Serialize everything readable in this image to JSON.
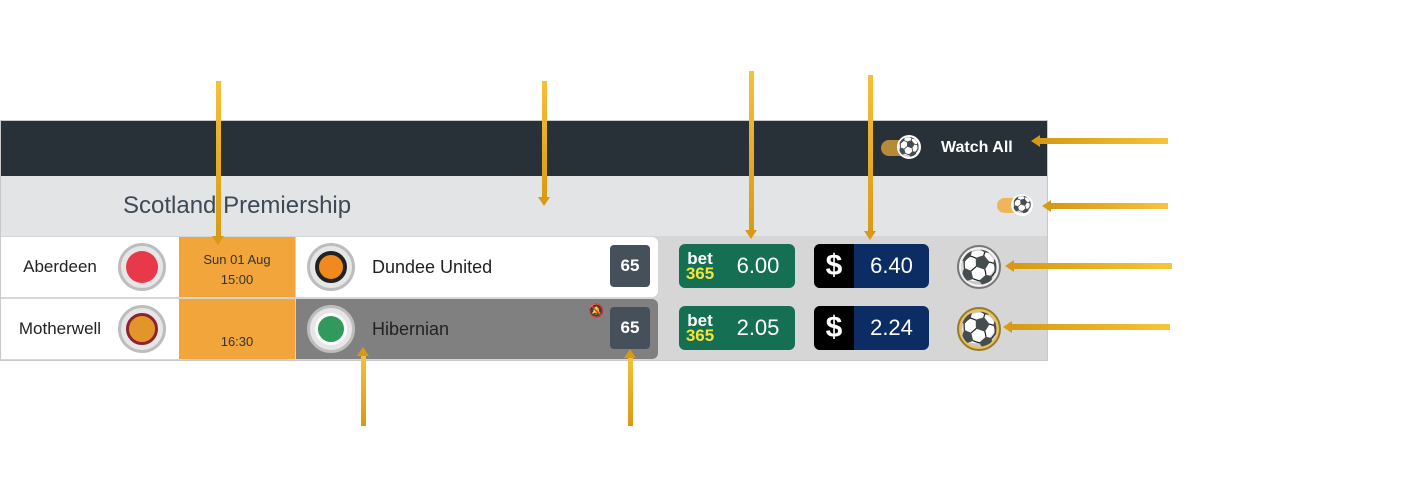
{
  "header": {
    "watch_all_label": "Watch All"
  },
  "league": {
    "name": "Scotland Premiership"
  },
  "matches": [
    {
      "home": {
        "name": "Aberdeen",
        "crest_color": "#e8394a"
      },
      "date": "Sun 01 Aug",
      "time": "15:00",
      "away": {
        "name": "Dundee United",
        "crest_color": "#f08a1c"
      },
      "count": "65",
      "odds_bet365": "6.00",
      "odds_s": "6.40",
      "notification_muted": false,
      "watch_state": "grey"
    },
    {
      "home": {
        "name": "Motherwell",
        "crest_color": "#e3952a"
      },
      "date": "",
      "time": "16:30",
      "away": {
        "name": "Hibernian",
        "crest_color": "#2f9a5b"
      },
      "count": "65",
      "odds_bet365": "2.05",
      "odds_s": "2.24",
      "notification_muted": true,
      "watch_state": "gold"
    }
  ],
  "logos": {
    "bet365_top": "bet",
    "bet365_bottom": "365",
    "s_logo": "$"
  },
  "colors": {
    "header_bg": "#283137",
    "league_bg": "#e3e4e6",
    "time_bg": "#f2a53a",
    "bet365_bg": "#156f52",
    "s_bg": "#0c2d63",
    "callout": "#e8ac20"
  },
  "icons": {
    "toggle_ball": "soccer-ball-icon",
    "bell": "bell-muted-icon"
  }
}
